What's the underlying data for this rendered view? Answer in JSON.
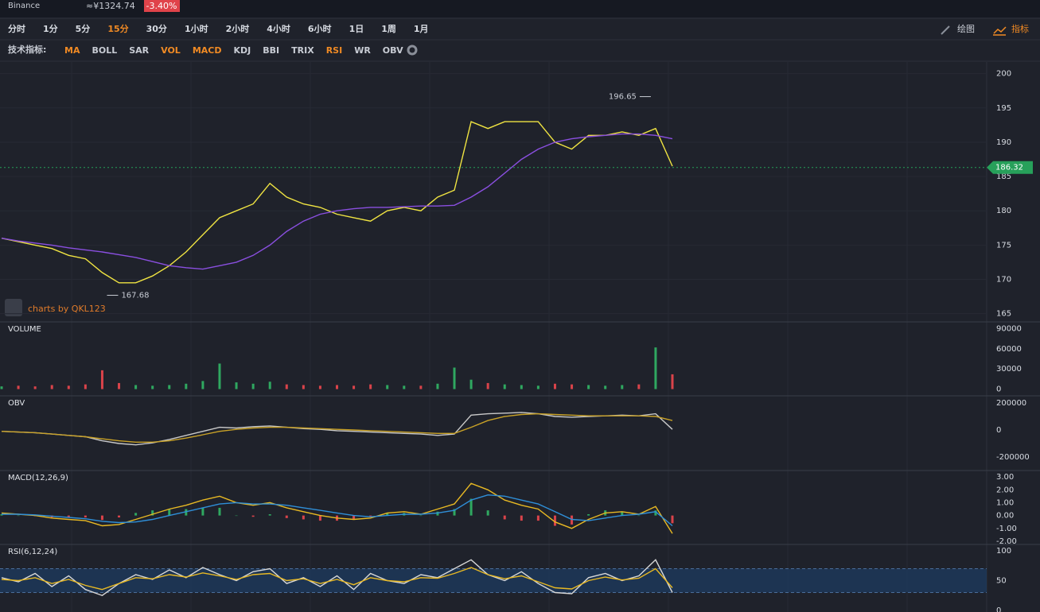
{
  "header": {
    "exchange": "Binance",
    "price": "≈¥1324.74",
    "change": "-3.40%"
  },
  "toolbar": {
    "intervals": [
      "分时",
      "1分",
      "5分",
      "15分",
      "30分",
      "1小时",
      "2小时",
      "4小时",
      "6小时",
      "1日",
      "1周",
      "1月"
    ],
    "active_interval": 3,
    "actions": [
      "绘图",
      "指标"
    ]
  },
  "indicators": {
    "label": "技术指标:",
    "items": [
      {
        "label": "MA",
        "active": true
      },
      {
        "label": "BOLL",
        "active": false
      },
      {
        "label": "SAR",
        "active": false
      },
      {
        "label": "VOL",
        "active": true
      },
      {
        "label": "MACD",
        "active": true
      },
      {
        "label": "KDJ",
        "active": false
      },
      {
        "label": "BBI",
        "active": false
      },
      {
        "label": "TRIX",
        "active": false
      },
      {
        "label": "RSI",
        "active": true
      },
      {
        "label": "WR",
        "active": false
      },
      {
        "label": "OBV",
        "active": false
      }
    ]
  },
  "watermark": "charts by QKL123",
  "chart_data": [
    {
      "type": "line",
      "ylim": [
        163.8,
        201.7
      ],
      "yticks": [
        165,
        170,
        175,
        180,
        185,
        190,
        195,
        200
      ],
      "grid": true,
      "series": [
        {
          "color": "#f0e442",
          "values": [
            176,
            175.5,
            175,
            174.5,
            173.5,
            173,
            171,
            169.5,
            169.5,
            170.5,
            172,
            174,
            176.5,
            179,
            180,
            181,
            184,
            182,
            181,
            180.5,
            179.5,
            179,
            178.5,
            180,
            180.5,
            180,
            182,
            183,
            193,
            192,
            193,
            193,
            193,
            190,
            189,
            191,
            191,
            191.5,
            191,
            192,
            186.5
          ]
        },
        {
          "color": "#8a4fe0",
          "values": [
            176,
            175.6,
            175.3,
            175,
            174.6,
            174.3,
            174,
            173.6,
            173.2,
            172.6,
            172,
            171.7,
            171.5,
            172,
            172.5,
            173.5,
            175,
            177,
            178.5,
            179.5,
            180,
            180.3,
            180.5,
            180.5,
            180.6,
            180.7,
            180.7,
            180.8,
            182,
            183.5,
            185.5,
            187.5,
            189,
            190,
            190.5,
            190.8,
            191,
            191.2,
            191.2,
            191,
            190.5
          ]
        }
      ],
      "annotations": [
        {
          "x": 39,
          "value": 196.65
        },
        {
          "x": 6,
          "value": 167.68
        }
      ],
      "last": 186.32,
      "last_color": "#27a05a"
    },
    {
      "type": "bar",
      "title": "VOLUME",
      "ylim": [
        -10000,
        100000
      ],
      "yticks": [
        0,
        30000,
        60000,
        90000
      ],
      "colors": [
        "#2fa860",
        "#d9434a"
      ],
      "values": [
        4000,
        5000,
        4000,
        6000,
        5000,
        7000,
        28000,
        9000,
        6000,
        5000,
        6000,
        8000,
        12000,
        38000,
        10000,
        8000,
        11000,
        7000,
        6000,
        5000,
        6000,
        5000,
        7000,
        6000,
        5000,
        5000,
        8000,
        32000,
        14000,
        9000,
        7000,
        6000,
        5000,
        8000,
        7000,
        6000,
        5000,
        6000,
        7000,
        62000,
        22000
      ]
    },
    {
      "type": "line",
      "title": "OBV",
      "ylim": [
        -300000,
        253000
      ],
      "yticks": [
        -200000,
        0,
        200000
      ],
      "series": [
        {
          "color": "#c9c9c9",
          "values": [
            -10000,
            -15000,
            -20000,
            -30000,
            -40000,
            -50000,
            -80000,
            -100000,
            -110000,
            -95000,
            -70000,
            -40000,
            -10000,
            20000,
            15000,
            25000,
            30000,
            20000,
            10000,
            5000,
            -5000,
            -10000,
            -15000,
            -20000,
            -25000,
            -30000,
            -40000,
            -30000,
            110000,
            120000,
            125000,
            130000,
            120000,
            100000,
            95000,
            100000,
            105000,
            110000,
            105000,
            120000,
            5000
          ]
        },
        {
          "color": "#c9a227",
          "values": [
            -10000,
            -15000,
            -20000,
            -30000,
            -40000,
            -50000,
            -65000,
            -80000,
            -90000,
            -90000,
            -80000,
            -60000,
            -35000,
            -10000,
            5000,
            15000,
            20000,
            20000,
            15000,
            10000,
            5000,
            0,
            -5000,
            -10000,
            -15000,
            -20000,
            -25000,
            -25000,
            20000,
            70000,
            100000,
            115000,
            120000,
            115000,
            110000,
            105000,
            105000,
            105000,
            105000,
            100000,
            70000
          ]
        }
      ]
    },
    {
      "type": "line",
      "title": "MACD(12,26,9)",
      "ylim": [
        -2.25,
        3.5
      ],
      "yticks": [
        {
          "value": -2,
          "label": "-2.00"
        },
        {
          "value": -1,
          "label": "-1.00"
        },
        {
          "value": 0,
          "label": "0.00"
        },
        {
          "value": 1,
          "label": "1.00"
        },
        {
          "value": 2,
          "label": "2.00"
        },
        {
          "value": 3,
          "label": "3.00"
        }
      ],
      "series": [
        {
          "color": "#e8b923",
          "values": [
            0.2,
            0.1,
            0,
            -0.2,
            -0.3,
            -0.4,
            -0.8,
            -0.7,
            -0.3,
            0.1,
            0.5,
            0.8,
            1.2,
            1.5,
            1.0,
            0.8,
            1.0,
            0.6,
            0.3,
            0,
            -0.2,
            -0.3,
            -0.2,
            0.2,
            0.3,
            0.1,
            0.5,
            0.9,
            2.5,
            2.0,
            1.2,
            0.8,
            0.5,
            -0.5,
            -1.0,
            -0.3,
            0.2,
            0.3,
            0.1,
            0.7,
            -1.4
          ]
        },
        {
          "color": "#2f8fd8",
          "values": [
            0.1,
            0.1,
            0.05,
            -0.05,
            -0.15,
            -0.25,
            -0.45,
            -0.55,
            -0.5,
            -0.3,
            0,
            0.3,
            0.6,
            0.9,
            1.0,
            0.9,
            0.9,
            0.8,
            0.6,
            0.4,
            0.2,
            0,
            -0.1,
            0,
            0.1,
            0.1,
            0.2,
            0.4,
            1.2,
            1.6,
            1.5,
            1.2,
            0.9,
            0.3,
            -0.3,
            -0.4,
            -0.2,
            0,
            0.1,
            0.3,
            -0.8
          ]
        }
      ],
      "histogram": [
        0.1,
        0,
        -0.05,
        -0.15,
        -0.15,
        -0.15,
        -0.35,
        -0.15,
        0.2,
        0.4,
        0.5,
        0.5,
        0.6,
        0.6,
        0,
        -0.1,
        0.1,
        -0.2,
        -0.3,
        -0.4,
        -0.4,
        -0.3,
        -0.1,
        0.2,
        0.2,
        0,
        0.3,
        0.5,
        1.3,
        0.4,
        -0.3,
        -0.4,
        -0.4,
        -0.8,
        -0.7,
        0.1,
        0.4,
        0.3,
        0,
        0.4,
        -0.6
      ],
      "colors": [
        "#2fa860",
        "#d9434a"
      ]
    },
    {
      "type": "line",
      "title": "RSI(6,12,24)",
      "ylim": [
        -2.7,
        110.7
      ],
      "yticks": [
        0,
        50,
        100
      ],
      "band": [
        30,
        70
      ],
      "series": [
        {
          "color": "#d8d8d8",
          "values": [
            55,
            48,
            62,
            40,
            58,
            35,
            25,
            45,
            60,
            52,
            68,
            55,
            72,
            60,
            50,
            65,
            70,
            45,
            55,
            40,
            58,
            35,
            62,
            50,
            45,
            60,
            55,
            70,
            85,
            60,
            50,
            65,
            45,
            30,
            28,
            55,
            62,
            50,
            58,
            85,
            30
          ]
        },
        {
          "color": "#e8b923",
          "values": [
            52,
            50,
            55,
            45,
            52,
            42,
            35,
            45,
            55,
            53,
            60,
            56,
            63,
            58,
            52,
            60,
            62,
            50,
            53,
            45,
            52,
            43,
            55,
            50,
            48,
            55,
            54,
            62,
            72,
            60,
            53,
            58,
            48,
            38,
            36,
            50,
            56,
            51,
            54,
            70,
            38
          ]
        }
      ]
    }
  ]
}
